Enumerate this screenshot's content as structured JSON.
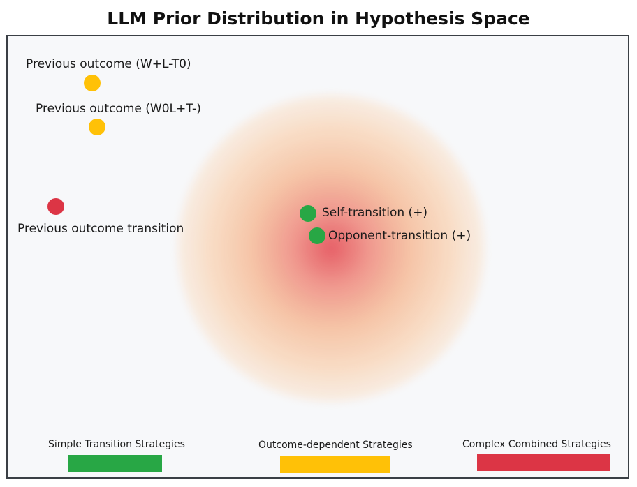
{
  "title": "LLM Prior Distribution in Hypothesis Space",
  "colors": {
    "simple": "#28a745",
    "outcome": "#ffc107",
    "complex": "#dc3545"
  },
  "points": [
    {
      "label": "Previous outcome (W+L-T0)",
      "category": "outcome"
    },
    {
      "label": "Previous outcome (W0L+T-)",
      "category": "outcome"
    },
    {
      "label": "Previous outcome transition",
      "category": "complex"
    },
    {
      "label": "Self-transition (+)",
      "category": "simple"
    },
    {
      "label": "Opponent-transition (+)",
      "category": "simple"
    }
  ],
  "legend": [
    {
      "label": "Simple Transition Strategies",
      "category": "simple"
    },
    {
      "label": "Outcome-dependent Strategies",
      "category": "outcome"
    },
    {
      "label": "Complex Combined Strategies",
      "category": "complex"
    }
  ]
}
